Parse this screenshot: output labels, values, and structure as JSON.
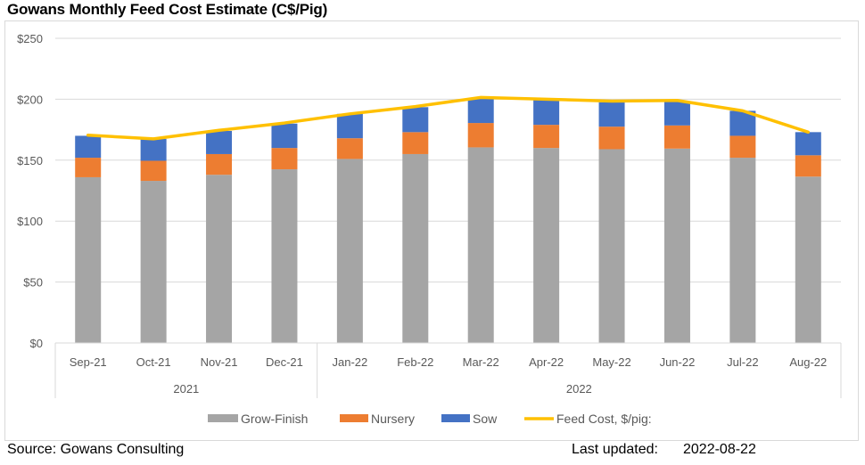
{
  "title": "Gowans Monthly Feed Cost Estimate (C$/Pig)",
  "footer": {
    "source": "Source: Gowans Consulting",
    "updated_label": "Last updated:",
    "updated_value": "2022-08-22"
  },
  "chart_data": {
    "type": "bar",
    "stacked": true,
    "title": "Gowans Monthly Feed Cost Estimate (C$/Pig)",
    "xlabel": "",
    "ylabel": "",
    "ylim": [
      0,
      250
    ],
    "yticks": [
      0,
      50,
      100,
      150,
      200,
      250
    ],
    "ytick_labels": [
      "$0",
      "$50",
      "$100",
      "$150",
      "$200",
      "$250"
    ],
    "grid": true,
    "legend": "bottom",
    "categories": [
      "Sep-21",
      "Oct-21",
      "Nov-21",
      "Dec-21",
      "Jan-22",
      "Feb-22",
      "Mar-22",
      "Apr-22",
      "May-22",
      "Jun-22",
      "Jul-22",
      "Aug-22"
    ],
    "category_groups": [
      {
        "label": "2021",
        "count": 4
      },
      {
        "label": "2022",
        "count": 8
      }
    ],
    "series": [
      {
        "name": "Grow-Finish",
        "kind": "bar",
        "color": "#A5A5A5",
        "values": [
          136,
          133,
          138,
          142.5,
          151,
          155,
          160.5,
          160,
          159,
          159.5,
          152,
          136.5
        ]
      },
      {
        "name": "Nursery",
        "kind": "bar",
        "color": "#ED7D31",
        "values": [
          16,
          16.5,
          17,
          17.5,
          17,
          18,
          20,
          19,
          18.5,
          19,
          18,
          17.5
        ]
      },
      {
        "name": "Sow",
        "kind": "bar",
        "color": "#4472C4",
        "values": [
          18,
          18,
          19,
          20,
          20,
          20.5,
          20.5,
          20.5,
          20,
          20,
          20.5,
          19
        ]
      },
      {
        "name": "Feed Cost, $/pig:",
        "kind": "line",
        "color": "#FFC000",
        "values": [
          170.5,
          167.5,
          174.5,
          180.5,
          188,
          194,
          201.5,
          200,
          198.5,
          199,
          190.5,
          173
        ]
      }
    ]
  }
}
